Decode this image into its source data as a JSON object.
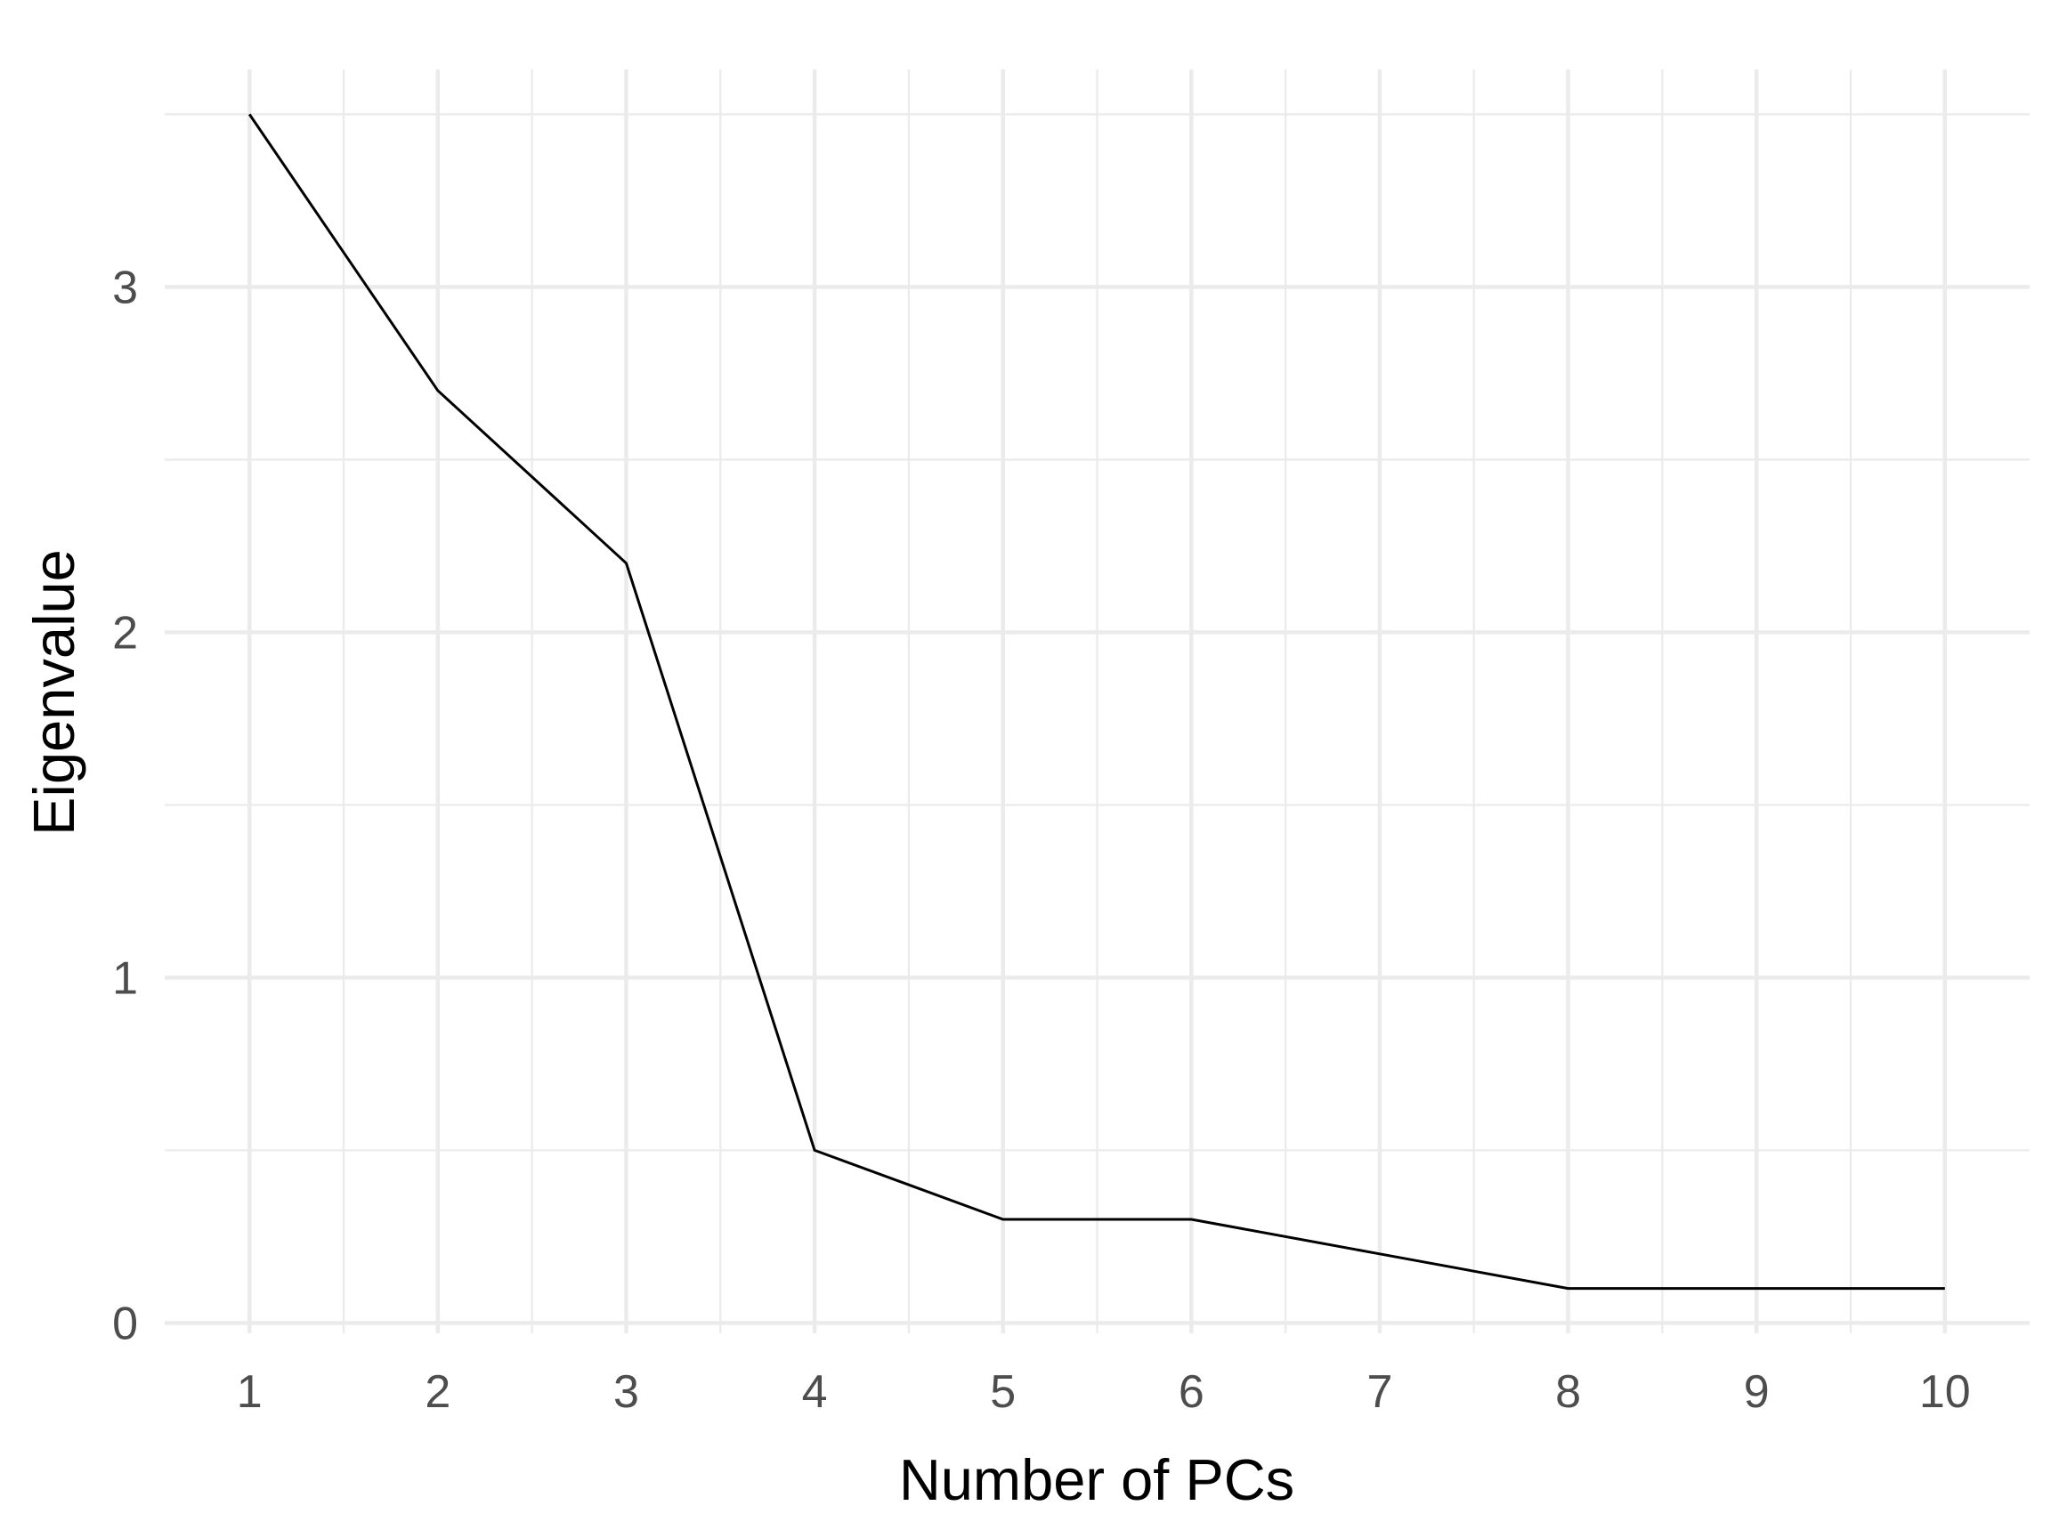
{
  "chart_data": {
    "type": "line",
    "title": "",
    "xlabel": "Number of PCs",
    "ylabel": "Eigenvalue",
    "x": [
      1,
      2,
      3,
      4,
      5,
      6,
      7,
      8,
      9,
      10
    ],
    "series": [
      {
        "values": [
          3.5,
          2.7,
          2.2,
          0.5,
          0.3,
          0.3,
          0.2,
          0.1,
          0.1,
          0.1
        ]
      }
    ],
    "x_ticks": [
      "1",
      "2",
      "3",
      "4",
      "5",
      "6",
      "7",
      "8",
      "9",
      "10"
    ],
    "y_ticks": [
      "0",
      "1",
      "2",
      "3"
    ],
    "xlim": [
      0.55,
      10.45
    ],
    "ylim": [
      -0.03,
      3.63
    ],
    "grid": true,
    "line_color": "#000000",
    "grid_color": "#ebebeb",
    "background": "#ffffff"
  }
}
